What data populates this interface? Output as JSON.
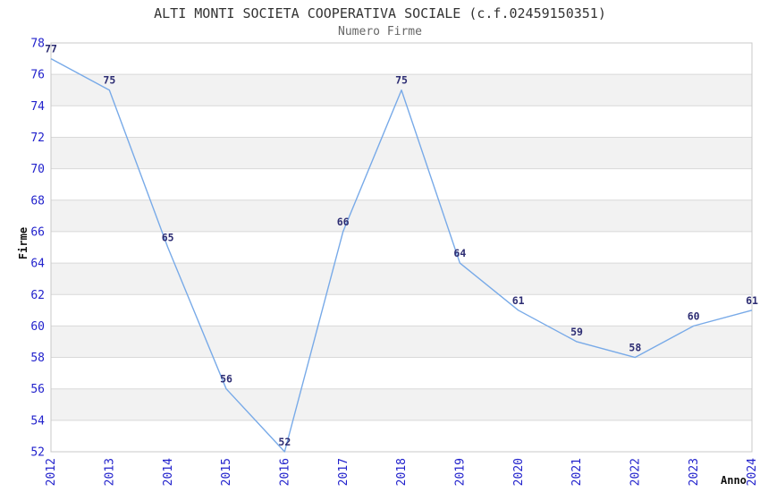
{
  "chart_data": {
    "type": "line",
    "title": "ALTI MONTI SOCIETA COOPERATIVA SOCIALE (c.f.02459150351)",
    "subtitle": "Numero Firme",
    "xlabel": "Anno",
    "ylabel": "Firme",
    "categories": [
      "2012",
      "2013",
      "2014",
      "2015",
      "2016",
      "2017",
      "2018",
      "2019",
      "2020",
      "2021",
      "2022",
      "2023",
      "2024"
    ],
    "series": [
      {
        "name": "Numero Firme",
        "values": [
          77,
          75,
          65,
          56,
          52,
          66,
          75,
          64,
          61,
          59,
          58,
          60,
          61
        ]
      }
    ],
    "point_labels": [
      "77",
      "75",
      "65",
      "56",
      "52",
      "66",
      "75",
      "64",
      "61",
      "59",
      "58",
      "60",
      "61"
    ],
    "ylim": [
      52,
      78
    ],
    "ytick_step": 2,
    "yticks": [
      "52",
      "54",
      "56",
      "58",
      "60",
      "62",
      "64",
      "66",
      "68",
      "70",
      "72",
      "74",
      "76",
      "78"
    ],
    "grid": "horizontal-alternating-bands",
    "legend": "none",
    "colors": {
      "line": "#78aae8",
      "tick_label": "#2222cc",
      "point_label": "#2d2d73",
      "band": "#f2f2f2",
      "grid_line": "#d9d9d9",
      "plot_border": "#c8c8c8",
      "title": "#333333",
      "subtitle": "#666666",
      "axis_label": "#111111",
      "background": "#ffffff"
    }
  }
}
